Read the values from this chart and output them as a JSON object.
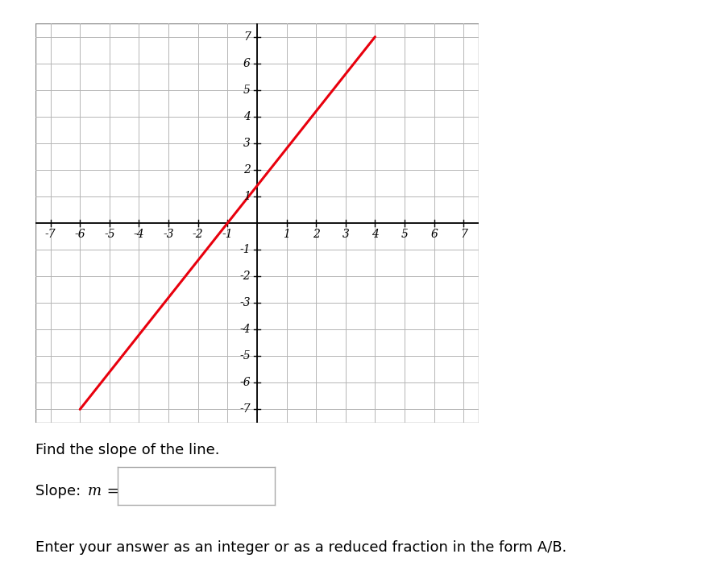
{
  "line_x": [
    -6,
    4
  ],
  "line_y": [
    -7,
    7
  ],
  "line_color": "#e8000d",
  "line_width": 2.2,
  "grid_color": "#b5b5b5",
  "axis_color": "#000000",
  "xlim": [
    -7.5,
    7.5
  ],
  "ylim": [
    -7.5,
    7.5
  ],
  "xticks": [
    -7,
    -6,
    -5,
    -4,
    -3,
    -2,
    -1,
    1,
    2,
    3,
    4,
    5,
    6,
    7
  ],
  "yticks": [
    -7,
    -6,
    -5,
    -4,
    -3,
    -2,
    -1,
    1,
    2,
    3,
    4,
    5,
    6,
    7
  ],
  "tick_labels_x": [
    "-7",
    "-6",
    "-5",
    "-4",
    "-3",
    "-2",
    "-1",
    "1",
    "2",
    "3",
    "4",
    "5",
    "6",
    "7"
  ],
  "tick_labels_y": [
    "-7",
    "-6",
    "-5",
    "-4",
    "-3",
    "-2",
    "-1",
    "1",
    "2",
    "3",
    "4",
    "5",
    "6",
    "7"
  ],
  "fig_width": 8.86,
  "fig_height": 7.29,
  "background_color": "#ffffff",
  "tick_font_size": 10,
  "label_font_size": 13,
  "below_text1": "Find the slope of the line.",
  "below_text3": "Enter your answer as an integer or as a reduced fraction in the form A/B."
}
